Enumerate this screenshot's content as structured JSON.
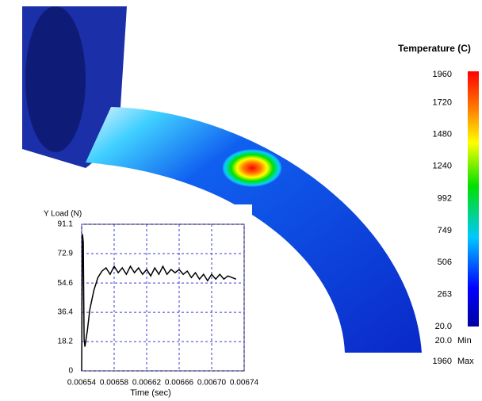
{
  "chart_data": {
    "type": "line",
    "title": "Y Load (N)",
    "x_label": "Time (sec)",
    "color": "#000000",
    "grid": true,
    "x": [
      0.00654,
      0.006541,
      0.006542,
      0.006543,
      0.006544,
      0.006547,
      0.00655,
      0.006555,
      0.00656,
      0.006565,
      0.00657,
      0.006575,
      0.00658,
      0.006585,
      0.00659,
      0.006595,
      0.0066,
      0.006605,
      0.00661,
      0.006615,
      0.00662,
      0.006625,
      0.00663,
      0.006635,
      0.00664,
      0.006645,
      0.00665,
      0.006655,
      0.00666,
      0.006665,
      0.00667,
      0.006675,
      0.00668,
      0.006685,
      0.00669,
      0.006695,
      0.0067,
      0.006705,
      0.00671,
      0.006715,
      0.00672,
      0.006725,
      0.00673
    ],
    "values": [
      0,
      85,
      80,
      20,
      15,
      25,
      38,
      50,
      58,
      62,
      64,
      60,
      65,
      61,
      64,
      60,
      65,
      61,
      64,
      60,
      63,
      59,
      64,
      60,
      65,
      60,
      63,
      61,
      63,
      60,
      62,
      58,
      61,
      57,
      60,
      56,
      60,
      57,
      60,
      57,
      59,
      58,
      57
    ],
    "xlim": [
      0.00654,
      0.00674
    ],
    "xticks": [
      0.00654,
      0.00658,
      0.00662,
      0.00666,
      {
        "value": 0.0067,
        "label": "0.00670"
      },
      0.00674
    ],
    "ylim": [
      0,
      91.1
    ],
    "yticks": [
      0,
      18.2,
      36.4,
      54.6,
      72.9,
      91.1
    ]
  },
  "colorbar": {
    "title": "Temperature (C)",
    "lim": [
      20,
      1960
    ],
    "ticks": [
      1960,
      1720,
      1480,
      1240,
      992,
      749,
      506,
      263,
      {
        "value": 20,
        "label": "20.0"
      }
    ],
    "min": {
      "value": 20,
      "label": "20.0"
    },
    "min_label": "Min",
    "max": 1960,
    "max_label": "Max"
  }
}
